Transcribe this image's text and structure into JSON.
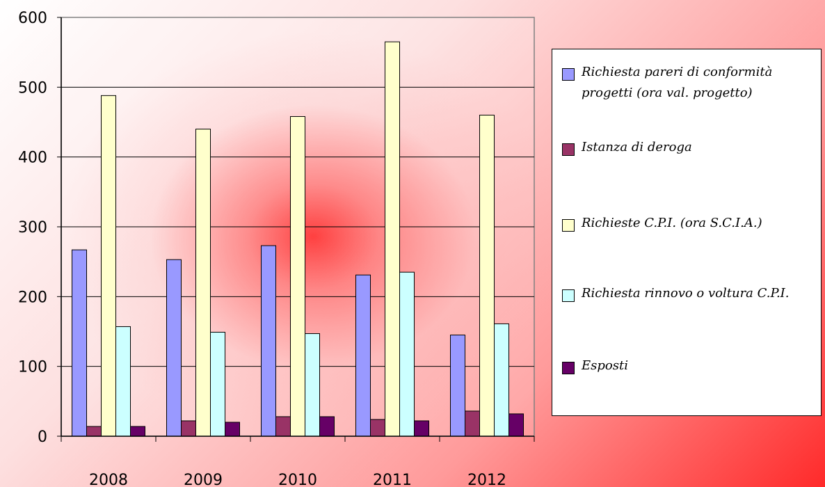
{
  "chart_data": {
    "type": "bar",
    "categories": [
      "2008",
      "2009",
      "2010",
      "2011",
      "2012"
    ],
    "series": [
      {
        "name": "Richiesta pareri di conformità progetti (ora val. progetto)",
        "color": "#9999ff",
        "values": [
          267,
          253,
          273,
          231,
          145
        ]
      },
      {
        "name": "Istanza di deroga",
        "color": "#993366",
        "values": [
          14,
          22,
          28,
          24,
          36
        ]
      },
      {
        "name": "Richieste C.P.I. (ora S.C.I.A.)",
        "color": "#ffffcc",
        "values": [
          488,
          440,
          458,
          565,
          460
        ]
      },
      {
        "name": "Richiesta rinnovo o voltura C.P.I.",
        "color": "#ccffff",
        "values": [
          157,
          149,
          147,
          235,
          161
        ]
      },
      {
        "name": "Esposti",
        "color": "#660066",
        "values": [
          14,
          20,
          28,
          22,
          32
        ]
      }
    ],
    "yticks": [
      "0",
      "100",
      "200",
      "300",
      "400",
      "500",
      "600"
    ],
    "ylim": [
      0,
      600
    ],
    "grid": true,
    "legend_position": "right"
  }
}
